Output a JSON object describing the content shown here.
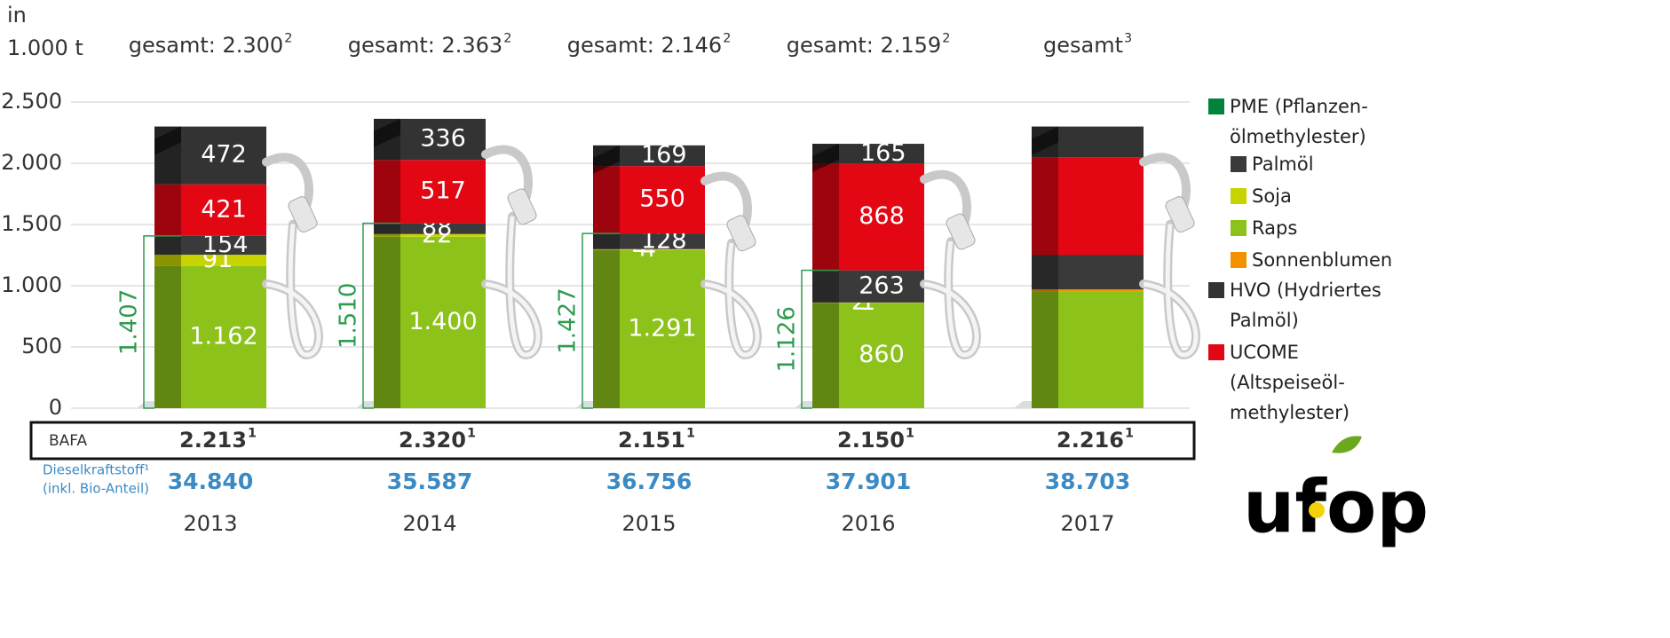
{
  "chart_data": {
    "type": "stacked-bar",
    "unit_label": [
      "in",
      "1.000 t"
    ],
    "categories": [
      "2013",
      "2014",
      "2015",
      "2016",
      "2017"
    ],
    "totals": [
      {
        "text": "gesamt: 2.300",
        "sup": "2"
      },
      {
        "text": "gesamt: 2.363",
        "sup": "2"
      },
      {
        "text": "gesamt: 2.146",
        "sup": "2"
      },
      {
        "text": "gesamt: 2.159",
        "sup": "2"
      },
      {
        "text": "gesamt",
        "sup": "3"
      }
    ],
    "legend_group": "PME (Pflanzen-ölmethylester)",
    "legend_group_color": "#00843d",
    "series": [
      {
        "name": "Raps",
        "color": "#8cc21a",
        "values": [
          1162,
          1400,
          1291,
          860,
          950
        ],
        "value_labels": [
          "1.162",
          "1.400",
          "1.291",
          "860",
          null
        ]
      },
      {
        "name": "Soja",
        "color": "#c8d400",
        "values": [
          91,
          22,
          4,
          1,
          0
        ],
        "value_labels": [
          "91",
          "22",
          "4",
          "1",
          null
        ]
      },
      {
        "name": "Sonnenblumen",
        "color": "#f39200",
        "values": [
          0,
          0,
          4,
          2,
          20
        ],
        "value_labels": [
          null,
          null,
          "4",
          "2",
          null
        ]
      },
      {
        "name": "Palmöl",
        "color": "#3a3a3a",
        "values": [
          154,
          88,
          128,
          263,
          280
        ],
        "value_labels": [
          "154",
          "88",
          "128",
          "263",
          null
        ]
      },
      {
        "name": "UCOME (Altspeiseöl-methylester)",
        "color": "#e30613",
        "values": [
          421,
          517,
          550,
          868,
          800
        ],
        "value_labels": [
          "421",
          "517",
          "550",
          "868",
          null
        ]
      },
      {
        "name": "HVO (Hydriertes Palmöl)",
        "color": "#333333",
        "values": [
          472,
          336,
          169,
          165,
          250
        ],
        "value_labels": [
          "472",
          "336",
          "169",
          "165",
          null
        ]
      }
    ],
    "brackets": [
      1407,
      1510,
      1427,
      1126,
      null
    ],
    "bracket_labels": [
      "1.407",
      "1.510",
      "1.427",
      "1.126",
      null
    ],
    "bracket_color": "#2e9b4e",
    "ylim": [
      0,
      2500
    ],
    "yticks": [
      0,
      500,
      {
        "value": 1000,
        "label": "1.000"
      },
      {
        "value": 1500,
        "label": "1.500"
      },
      {
        "value": 2000,
        "label": "2.000"
      },
      {
        "value": 2500,
        "label": "2.500"
      }
    ],
    "grid": true,
    "bafa_label": "BAFA",
    "bafa": [
      {
        "text": "2.213",
        "sup": "1"
      },
      {
        "text": "2.320",
        "sup": "1"
      },
      {
        "text": "2.151",
        "sup": "1"
      },
      {
        "text": "2.150",
        "sup": "1"
      },
      {
        "text": "2.216",
        "sup": "1"
      }
    ],
    "diesel_label": [
      "Dieselkraftstoff¹",
      "(inkl. Bio-Anteil)"
    ],
    "diesel": [
      "34.840",
      "35.587",
      "36.756",
      "37.901",
      "38.703"
    ],
    "diesel_color": "#3b8ac4",
    "logo": "ufop"
  }
}
